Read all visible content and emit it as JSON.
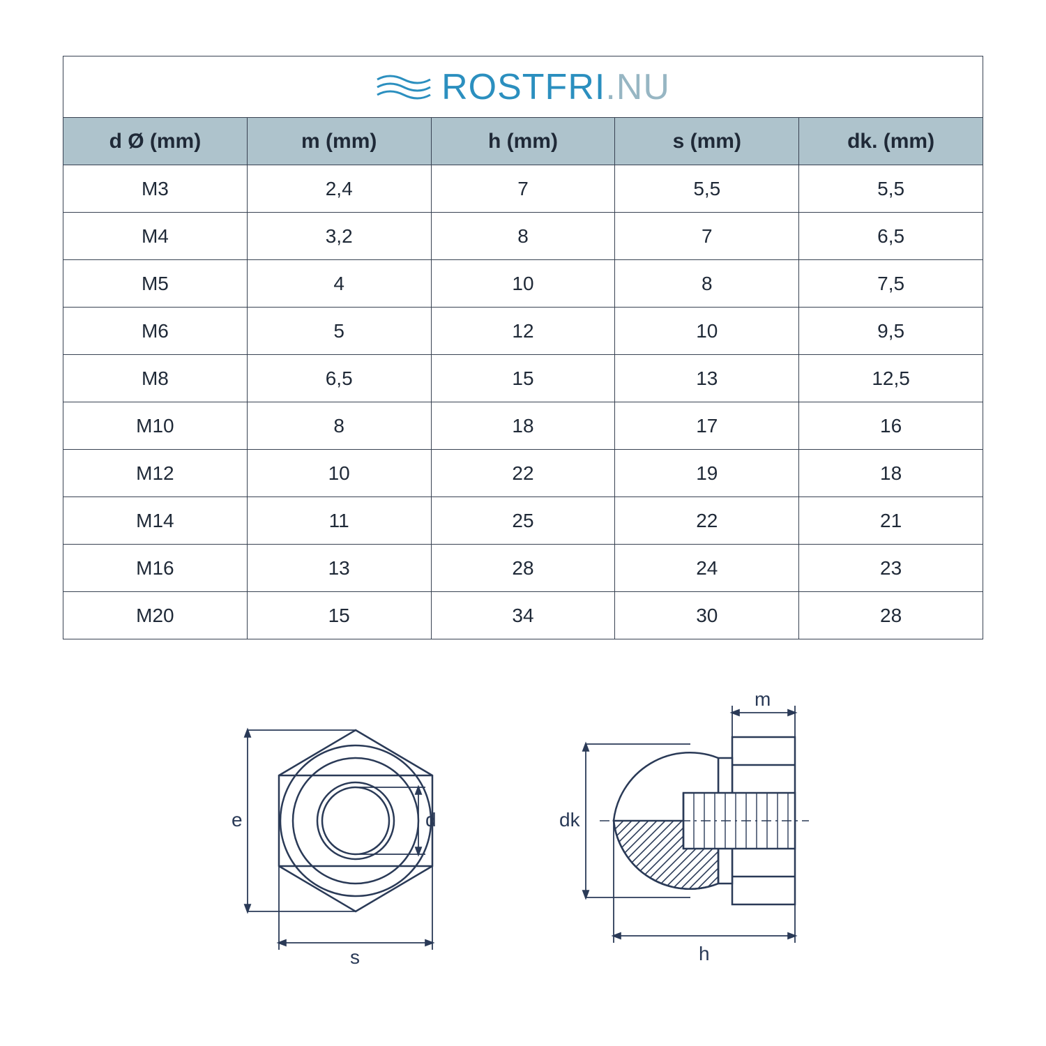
{
  "brand": {
    "part1": "ROSTFRI",
    "sep": ".",
    "part2": "NU"
  },
  "table": {
    "header_bg": "#aec3cc",
    "border_color": "#374151",
    "text_color": "#1f2937",
    "columns": [
      "d Ø (mm)",
      "m (mm)",
      "h (mm)",
      "s (mm)",
      "dk. (mm)"
    ],
    "rows": [
      [
        "M3",
        "2,4",
        "7",
        "5,5",
        "5,5"
      ],
      [
        "M4",
        "3,2",
        "8",
        "7",
        "6,5"
      ],
      [
        "M5",
        "4",
        "10",
        "8",
        "7,5"
      ],
      [
        "M6",
        "5",
        "12",
        "10",
        "9,5"
      ],
      [
        "M8",
        "6,5",
        "15",
        "13",
        "12,5"
      ],
      [
        "M10",
        "8",
        "18",
        "17",
        "16"
      ],
      [
        "M12",
        "10",
        "22",
        "19",
        "18"
      ],
      [
        "M14",
        "11",
        "25",
        "22",
        "21"
      ],
      [
        "M16",
        "13",
        "28",
        "24",
        "23"
      ],
      [
        "M20",
        "15",
        "34",
        "30",
        "28"
      ]
    ]
  },
  "diagram": {
    "labels": {
      "e": "e",
      "s": "s",
      "d": "d",
      "dk": "dk",
      "h": "h",
      "m": "m"
    },
    "stroke": "#2a3a57",
    "fill_light": "#ffffff",
    "hatch": "#2a3a57",
    "label_fontsize": 28
  }
}
